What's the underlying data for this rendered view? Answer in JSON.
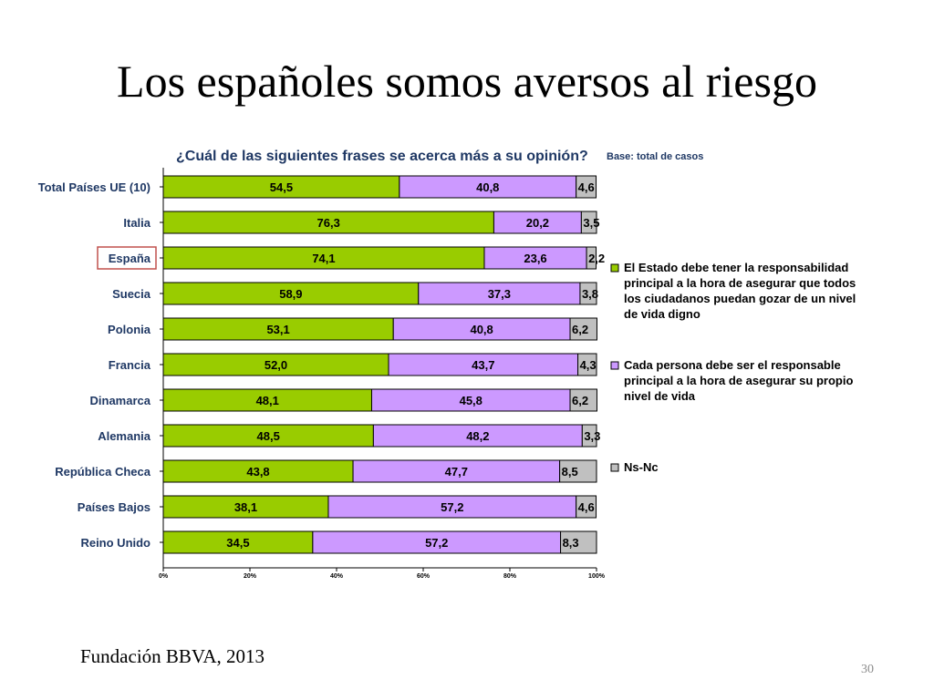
{
  "slide": {
    "title": "Los españoles somos aversos al riesgo",
    "source": "Fundación BBVA, 2013",
    "page_number": "30"
  },
  "chart_data": {
    "type": "bar",
    "orientation": "horizontal",
    "stacked": true,
    "normalized_percent": true,
    "title": "¿Cuál de las siguientes frases se acerca más a su opinión?",
    "subtitle": "Base: total de casos",
    "categories": [
      "Total Países UE (10)",
      "Italia",
      "España",
      "Suecia",
      "Polonia",
      "Francia",
      "Dinamarca",
      "Alemania",
      "República Checa",
      "Países Bajos",
      "Reino Unido"
    ],
    "highlighted_category": "España",
    "series": [
      {
        "name": "El Estado debe tener la responsabilidad principal a la hora de asegurar que todos los ciudadanos puedan gozar de un nivel de vida digno",
        "legend_lines": [
          "El Estado debe tener la responsabilidad",
          "principal a la hora de asegurar que todos",
          "los ciudadanos puedan gozar de un nivel",
          "de vida digno"
        ],
        "color": "#99cc00",
        "values": [
          54.5,
          76.3,
          74.1,
          58.9,
          53.1,
          52.0,
          48.1,
          48.5,
          43.8,
          38.1,
          34.5
        ],
        "labels": [
          "54,5",
          "76,3",
          "74,1",
          "58,9",
          "53,1",
          "52,0",
          "48,1",
          "48,5",
          "43,8",
          "38,1",
          "34,5"
        ]
      },
      {
        "name": "Cada persona debe ser el responsable principal a la hora de asegurar su propio nivel de vida",
        "legend_lines": [
          "Cada persona debe ser el responsable",
          "principal a la hora de asegurar su propio",
          "nivel de vida"
        ],
        "color": "#cc99ff",
        "values": [
          40.8,
          20.2,
          23.6,
          37.3,
          40.8,
          43.7,
          45.8,
          48.2,
          47.7,
          57.2,
          57.2
        ],
        "labels": [
          "40,8",
          "20,2",
          "23,6",
          "37,3",
          "40,8",
          "43,7",
          "45,8",
          "48,2",
          "47,7",
          "57,2",
          "57,2"
        ]
      },
      {
        "name": "Ns-Nc",
        "legend_lines": [
          "Ns-Nc"
        ],
        "color": "#c0c0c0",
        "values": [
          4.6,
          3.5,
          2.2,
          3.8,
          6.2,
          4.3,
          6.2,
          3.3,
          8.5,
          4.6,
          8.3
        ],
        "labels": [
          "4,6",
          "3,5",
          "2,2",
          "3,8",
          "6,2",
          "4,3",
          "6,2",
          "3,3",
          "8,5",
          "4,6",
          "8,3"
        ]
      }
    ],
    "x_axis": {
      "range": [
        0,
        100
      ],
      "ticks": [
        0,
        20,
        40,
        60,
        80,
        100
      ],
      "tick_labels": [
        "0%",
        "20%",
        "40%",
        "60%",
        "80%",
        "100%"
      ]
    },
    "grid": false,
    "legend_position": "right",
    "colors": {
      "title": "#1f3864",
      "subtitle": "#1f3864",
      "category_label": "#1f3864",
      "highlight_box": "#c0504d"
    }
  }
}
